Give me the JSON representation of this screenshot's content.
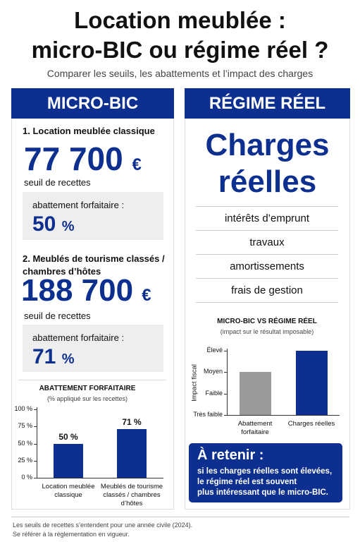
{
  "header": {
    "title": [
      "Location meublée :",
      "micro-BIC ou régime réel ?"
    ],
    "subtitle": "Comparer les seuils, les abattements et l’impact des charges"
  },
  "micro_bic": {
    "heading": "MICRO-BIC",
    "items": [
      {
        "label": "1. Location meublée classique",
        "amount": "77 700",
        "unit": "€",
        "threshold": "seuil de recettes",
        "allowance_label": "abattement forfaitaire :",
        "allowance": "50",
        "allowance_unit": "%"
      },
      {
        "label": "2. Meublés de tourisme classés / chambres d’hôtes",
        "amount": "188 700",
        "unit": "€",
        "threshold": "seuil de recettes",
        "allowance_label": "abattement forfaitaire :",
        "allowance": "71",
        "allowance_unit": "%"
      }
    ]
  },
  "regime_reel": {
    "heading": "RÉGIME RÉEL",
    "big": [
      "Charges",
      "réelles"
    ],
    "charges": [
      "intérêts d’emprunt",
      "travaux",
      "amortissements",
      "frais de gestion"
    ],
    "retain": {
      "title": "À retenir :",
      "lines": [
        "si les charges réelles sont élevées,",
        "le régime réel est souvent",
        "plus intéressant que le micro-BIC."
      ]
    }
  },
  "chart_data": [
    {
      "type": "bar",
      "title": "ABATTEMENT FORFAITAIRE",
      "subtitle": "(% appliqué sur les recettes)",
      "categories": [
        "Location meublée classique",
        "Meublés de tourisme classés / chambres d’hôtes"
      ],
      "values": [
        50,
        71
      ],
      "value_labels": [
        "50 %",
        "71 %"
      ],
      "color": "#0d2f8f",
      "ylim": [
        0,
        100
      ],
      "yticks": [
        {
          "value": 0,
          "label": "0 %"
        },
        {
          "value": 25,
          "label": "25 %"
        },
        {
          "value": 50,
          "label": "50 %"
        },
        {
          "value": 75,
          "label": "75 %"
        },
        {
          "value": 100,
          "label": "100 %"
        }
      ]
    },
    {
      "type": "bar",
      "title": "MICRO-BIC VS RÉGIME RÉEL",
      "subtitle": "(impact sur le résultat imposable)",
      "ylabel": "Impact fiscal",
      "categories": [
        "Abattement forfaitaire",
        "Charges réelles"
      ],
      "values": [
        2,
        3
      ],
      "colors": [
        "#9a9a9a",
        "#0d2f8f"
      ],
      "ylim": [
        0,
        3
      ],
      "yticks": [
        {
          "value": 0,
          "label": "Très faible"
        },
        {
          "value": 1,
          "label": "Faible"
        },
        {
          "value": 2,
          "label": "Moyen"
        },
        {
          "value": 3,
          "label": "Élevé"
        }
      ]
    }
  ],
  "footer": [
    "Les seuils de recettes s’entendent pour une année civile (2024).",
    "Se référer à la réglementation en vigueur."
  ]
}
